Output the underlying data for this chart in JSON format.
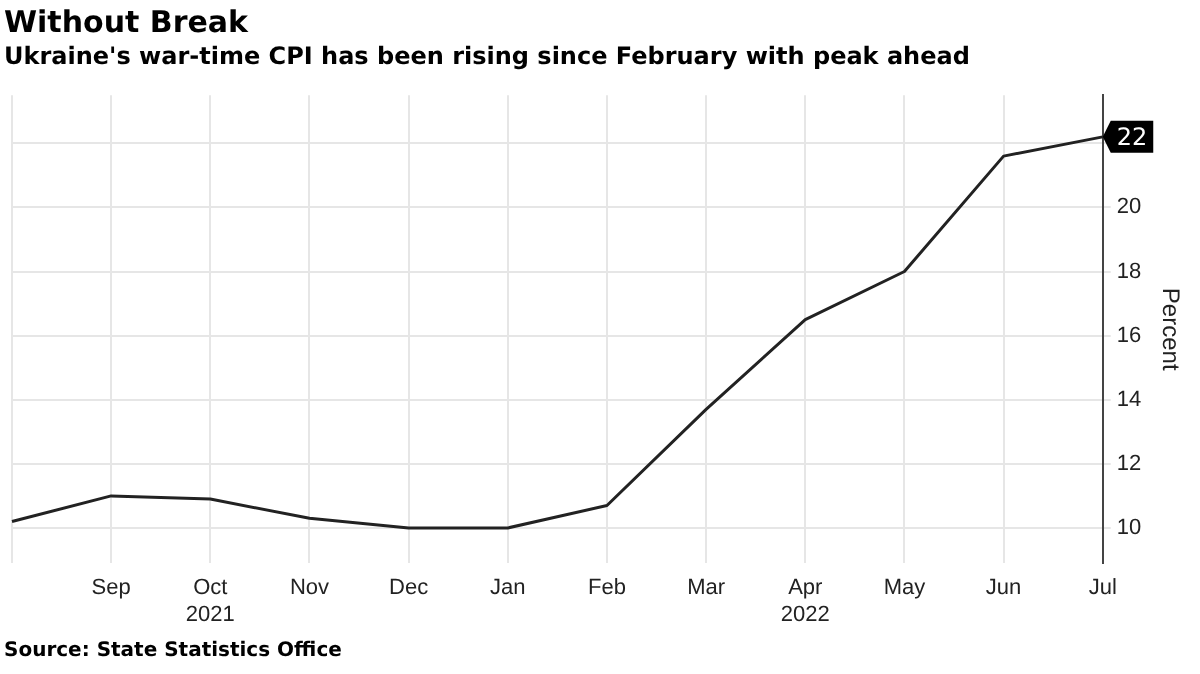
{
  "chart_data": {
    "type": "line",
    "title": "Without Break",
    "subtitle": "Ukraine's war-time CPI has been rising since February with peak ahead",
    "ylabel": "Percent",
    "categories": [
      null,
      "Sep",
      "Oct\n2021",
      "Nov",
      "Dec",
      "Jan",
      "Feb",
      "Mar",
      "Apr\n2022",
      "May",
      "Jun",
      "Jul"
    ],
    "series": [
      {
        "color": "#222222",
        "values": [
          10.2,
          11.0,
          10.9,
          10.3,
          10.0,
          10.0,
          10.7,
          13.7,
          16.5,
          18.0,
          21.6,
          22.2
        ],
        "value_labels": [
          null,
          null,
          null,
          null,
          null,
          null,
          null,
          null,
          null,
          null,
          null,
          "22"
        ]
      }
    ],
    "ylim": [
      8.9,
      23.5
    ],
    "yticks": [
      10,
      12,
      14,
      16,
      18,
      20,
      {
        "value": 22,
        "label": null
      }
    ],
    "grid": true,
    "legend": false,
    "marker": "none",
    "line_style": "solid",
    "annotations": [
      "Source: State Statistics Office"
    ]
  }
}
